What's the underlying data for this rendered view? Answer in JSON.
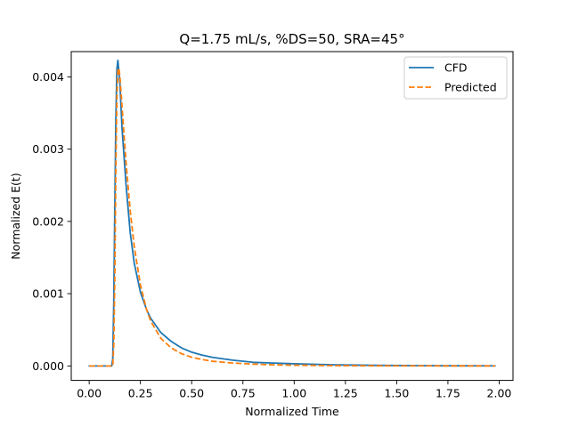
{
  "chart_data": {
    "type": "line",
    "title": "Q=1.75 mL/s, %DS=50, SRA=45°",
    "xlabel": "Normalized Time",
    "ylabel": "Normalized E(t)",
    "xlim": [
      -0.0875,
      2.0675
    ],
    "ylim": [
      -0.0002,
      0.00435
    ],
    "xticks": [
      0.0,
      0.25,
      0.5,
      0.75,
      1.0,
      1.25,
      1.5,
      1.75,
      2.0
    ],
    "xtick_labels": [
      "0.00",
      "0.25",
      "0.50",
      "0.75",
      "1.00",
      "1.25",
      "1.50",
      "1.75",
      "2.00"
    ],
    "yticks": [
      0.0,
      0.001,
      0.002,
      0.003,
      0.004
    ],
    "ytick_labels": [
      "0.000",
      "0.001",
      "0.002",
      "0.003",
      "0.004"
    ],
    "grid": false,
    "legend_position": "top-right",
    "series": [
      {
        "name": "CFD",
        "color": "#1f77b4",
        "style": "solid",
        "x": [
          0.0,
          0.1,
          0.11,
          0.115,
          0.12,
          0.125,
          0.13,
          0.135,
          0.14,
          0.15,
          0.16,
          0.18,
          0.2,
          0.22,
          0.25,
          0.28,
          0.3,
          0.35,
          0.4,
          0.45,
          0.5,
          0.55,
          0.6,
          0.7,
          0.8,
          0.9,
          1.0,
          1.2,
          1.4,
          1.6,
          1.8,
          1.98
        ],
        "y": [
          0.0,
          0.0,
          0.0,
          0.0001,
          0.0009,
          0.0022,
          0.0034,
          0.0041,
          0.00423,
          0.0039,
          0.0033,
          0.0025,
          0.00185,
          0.00142,
          0.00102,
          0.00078,
          0.00066,
          0.00046,
          0.00034,
          0.00025,
          0.00019,
          0.00015,
          0.00012,
          8e-05,
          5e-05,
          4e-05,
          3e-05,
          1.5e-05,
          8e-06,
          4e-06,
          2e-06,
          1e-06
        ]
      },
      {
        "name": "Predicted",
        "color": "#ff7f0e",
        "style": "dashed",
        "x": [
          0.0,
          0.11,
          0.115,
          0.12,
          0.125,
          0.13,
          0.135,
          0.14,
          0.145,
          0.15,
          0.16,
          0.18,
          0.2,
          0.22,
          0.25,
          0.28,
          0.3,
          0.35,
          0.4,
          0.45,
          0.5,
          0.55,
          0.6,
          0.7,
          0.8,
          0.9,
          1.0,
          1.2,
          1.4,
          1.6,
          1.8,
          1.98
        ],
        "y": [
          0.0,
          0.0,
          0.0,
          0.0003,
          0.0012,
          0.0027,
          0.0037,
          0.0041,
          0.00412,
          0.004,
          0.0036,
          0.0028,
          0.00215,
          0.00165,
          0.00112,
          0.00078,
          0.00062,
          0.00038,
          0.00025,
          0.00017,
          0.00012,
          9e-05,
          6.5e-05,
          4e-05,
          2.5e-05,
          1.5e-05,
          1e-05,
          4e-06,
          2e-06,
          1e-06,
          5e-07,
          2e-07
        ]
      }
    ]
  }
}
